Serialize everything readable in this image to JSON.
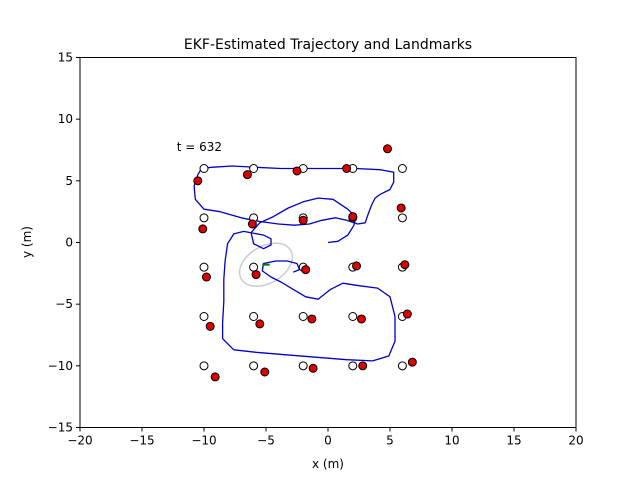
{
  "chart_data": {
    "type": "scatter",
    "title": "EKF-Estimated Trajectory and Landmarks",
    "xlabel": "x (m)",
    "ylabel": "y (m)",
    "xlim": [
      -20,
      20
    ],
    "ylim": [
      -15,
      15
    ],
    "xticks": [
      -20,
      -15,
      -10,
      -5,
      0,
      5,
      10,
      15,
      20
    ],
    "yticks": [
      -15,
      -10,
      -5,
      0,
      5,
      10,
      15
    ],
    "xtick_labels": [
      "−20",
      "−15",
      "−10",
      "−5",
      "0",
      "5",
      "10",
      "15",
      "20"
    ],
    "ytick_labels": [
      "−15",
      "−10",
      "−5",
      "0",
      "5",
      "10",
      "15"
    ],
    "grid": false,
    "annotation": {
      "text": "t = 632",
      "x": -12.2,
      "y": 7.4
    },
    "colors": {
      "trajectory": "#0000cc",
      "true_landmark_fill": "#ffffff",
      "estimated_landmark_fill": "#dd0000",
      "marker_edge": "#000000",
      "ellipse": "#cccccc",
      "heading": "#008000"
    },
    "true_landmarks": [
      [
        -10,
        6
      ],
      [
        -6,
        6
      ],
      [
        -2,
        6
      ],
      [
        2,
        6
      ],
      [
        6,
        6
      ],
      [
        -10,
        2
      ],
      [
        -6,
        2
      ],
      [
        -2,
        2
      ],
      [
        2,
        2
      ],
      [
        6,
        2
      ],
      [
        -10,
        -2
      ],
      [
        -6,
        -2
      ],
      [
        -2,
        -2
      ],
      [
        2,
        -2
      ],
      [
        6,
        -2
      ],
      [
        -10,
        -6
      ],
      [
        -6,
        -6
      ],
      [
        -2,
        -6
      ],
      [
        2,
        -6
      ],
      [
        6,
        -6
      ],
      [
        -10,
        -10
      ],
      [
        -6,
        -10
      ],
      [
        -2,
        -10
      ],
      [
        2,
        -10
      ],
      [
        6,
        -10
      ]
    ],
    "estimated_landmarks": [
      [
        -10.5,
        5.0
      ],
      [
        -6.5,
        5.5
      ],
      [
        -2.5,
        5.8
      ],
      [
        1.5,
        6.0
      ],
      [
        4.8,
        7.6
      ],
      [
        -10.1,
        1.1
      ],
      [
        -6.1,
        1.5
      ],
      [
        -2.0,
        1.8
      ],
      [
        2.0,
        2.1
      ],
      [
        5.9,
        2.8
      ],
      [
        -9.8,
        -2.8
      ],
      [
        -5.8,
        -2.6
      ],
      [
        -1.8,
        -2.2
      ],
      [
        2.3,
        -1.9
      ],
      [
        6.2,
        -1.8
      ],
      [
        -9.5,
        -6.8
      ],
      [
        -5.5,
        -6.6
      ],
      [
        -1.3,
        -6.2
      ],
      [
        2.7,
        -6.2
      ],
      [
        6.4,
        -5.8
      ],
      [
        -9.1,
        -10.9
      ],
      [
        -5.1,
        -10.5
      ],
      [
        -1.2,
        -10.2
      ],
      [
        2.8,
        -10.0
      ],
      [
        6.8,
        -9.7
      ]
    ],
    "trajectory": [
      [
        0,
        0
      ],
      [
        0.8,
        0.1
      ],
      [
        1.6,
        0.6
      ],
      [
        2.1,
        1.4
      ],
      [
        2.2,
        2.1
      ],
      [
        1.6,
        2.7
      ],
      [
        0.4,
        3.5
      ],
      [
        -0.8,
        3.6
      ],
      [
        -2.0,
        3.3
      ],
      [
        -3.2,
        2.8
      ],
      [
        -4.4,
        2.1
      ],
      [
        -5.5,
        1.6
      ],
      [
        -6.2,
        0.8
      ],
      [
        -6.0,
        -0.1
      ],
      [
        -5.2,
        -0.5
      ],
      [
        -4.6,
        -0.2
      ],
      [
        -4.6,
        0.3
      ],
      [
        -5.2,
        0.6
      ],
      [
        -6.8,
        0.9
      ],
      [
        -7.6,
        0.7
      ],
      [
        -8.1,
        -0.1
      ],
      [
        -8.3,
        -1.5
      ],
      [
        -8.4,
        -3.0
      ],
      [
        -8.4,
        -4.8
      ],
      [
        -8.5,
        -6.5
      ],
      [
        -8.5,
        -7.8
      ],
      [
        -7.6,
        -8.7
      ],
      [
        -5.8,
        -8.9
      ],
      [
        -3.5,
        -9.1
      ],
      [
        -1.0,
        -9.3
      ],
      [
        1.5,
        -9.5
      ],
      [
        3.6,
        -9.6
      ],
      [
        4.9,
        -9.2
      ],
      [
        5.4,
        -8.0
      ],
      [
        5.4,
        -6.0
      ],
      [
        5.0,
        -4.4
      ],
      [
        4.0,
        -3.7
      ],
      [
        2.5,
        -3.5
      ],
      [
        1.2,
        -3.3
      ],
      [
        0.2,
        -3.8
      ],
      [
        -0.8,
        -4.6
      ],
      [
        -1.8,
        -4.4
      ],
      [
        -2.8,
        -3.8
      ],
      [
        -3.8,
        -3.2
      ],
      [
        -4.6,
        -2.8
      ],
      [
        -5.3,
        -2.3
      ],
      [
        -5.2,
        -1.7
      ],
      [
        -4.2,
        -1.5
      ],
      [
        -3.3,
        -1.5
      ],
      [
        -2.5,
        -1.7
      ],
      [
        -2.3,
        -2.2
      ],
      [
        -2.8,
        -2.4
      ]
    ],
    "trajectory_upper": [
      [
        -10.2,
        6.0
      ],
      [
        -9.4,
        6.1
      ],
      [
        -7.7,
        6.2
      ],
      [
        -5.8,
        6.1
      ],
      [
        -3.8,
        6.0
      ],
      [
        -1.8,
        6.0
      ],
      [
        0.2,
        6.0
      ],
      [
        2.2,
        6.0
      ],
      [
        4.2,
        5.9
      ],
      [
        5.3,
        5.7
      ],
      [
        5.3,
        4.9
      ],
      [
        5.0,
        4.3
      ],
      [
        4.2,
        3.9
      ],
      [
        3.8,
        3.6
      ],
      [
        3.5,
        3.0
      ],
      [
        3.2,
        2.2
      ],
      [
        3.0,
        1.6
      ],
      [
        2.4,
        1.5
      ],
      [
        1.5,
        1.8
      ],
      [
        0.6,
        2.0
      ],
      [
        -0.5,
        1.8
      ],
      [
        -1.5,
        1.5
      ],
      [
        -2.7,
        1.4
      ],
      [
        -4.0,
        1.5
      ],
      [
        -5.5,
        1.7
      ],
      [
        -7.0,
        2.0
      ],
      [
        -8.7,
        2.5
      ],
      [
        -10.0,
        2.7
      ],
      [
        -10.7,
        3.5
      ],
      [
        -10.8,
        4.6
      ],
      [
        -10.5,
        5.5
      ],
      [
        -10.2,
        6.0
      ]
    ],
    "uncertainty_ellipse": {
      "cx": -5.0,
      "cy": -1.8,
      "rx": 2.3,
      "ry": 1.5,
      "angle_deg": 30
    },
    "heading": [
      [
        -5.3,
        -1.8
      ],
      [
        -4.7,
        -1.8
      ]
    ]
  }
}
